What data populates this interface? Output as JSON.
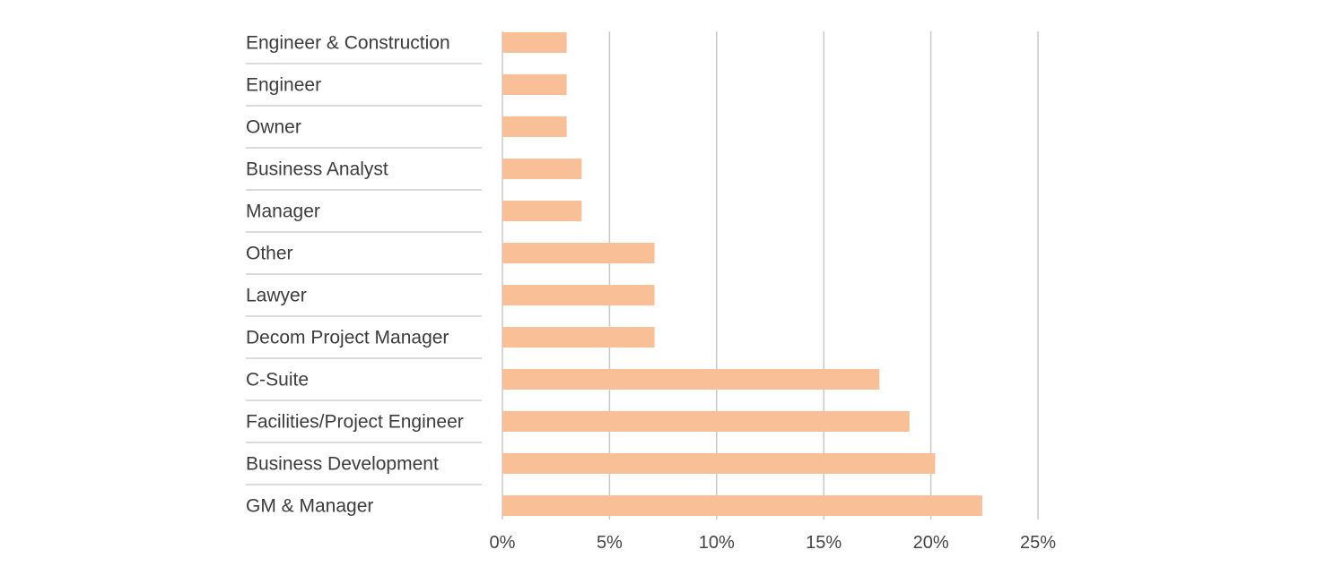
{
  "chart_data": {
    "type": "bar",
    "orientation": "horizontal",
    "categories": [
      "Engineer & Construction",
      "Engineer",
      "Owner",
      "Business Analyst",
      "Manager",
      "Other",
      "Lawyer",
      "Decom Project Manager",
      "C-Suite",
      "Facilities/Project Engineer",
      "Business Development",
      "GM & Manager"
    ],
    "values": [
      3.0,
      3.0,
      3.0,
      3.7,
      3.7,
      7.1,
      7.1,
      7.1,
      17.6,
      19.0,
      20.2,
      22.4
    ],
    "value_unit": "%",
    "xlim": [
      0,
      25
    ],
    "xticks": [
      0,
      5,
      10,
      15,
      20,
      25
    ],
    "xtick_labels": [
      "0%",
      "5%",
      "10%",
      "15%",
      "20%",
      "25%"
    ],
    "title": "",
    "xlabel": "",
    "ylabel": "",
    "grid": true,
    "legend": "none",
    "bar_color": "#f9bf96",
    "grid_color": "#c8c8c8",
    "text_color": "#3c3c3c"
  }
}
